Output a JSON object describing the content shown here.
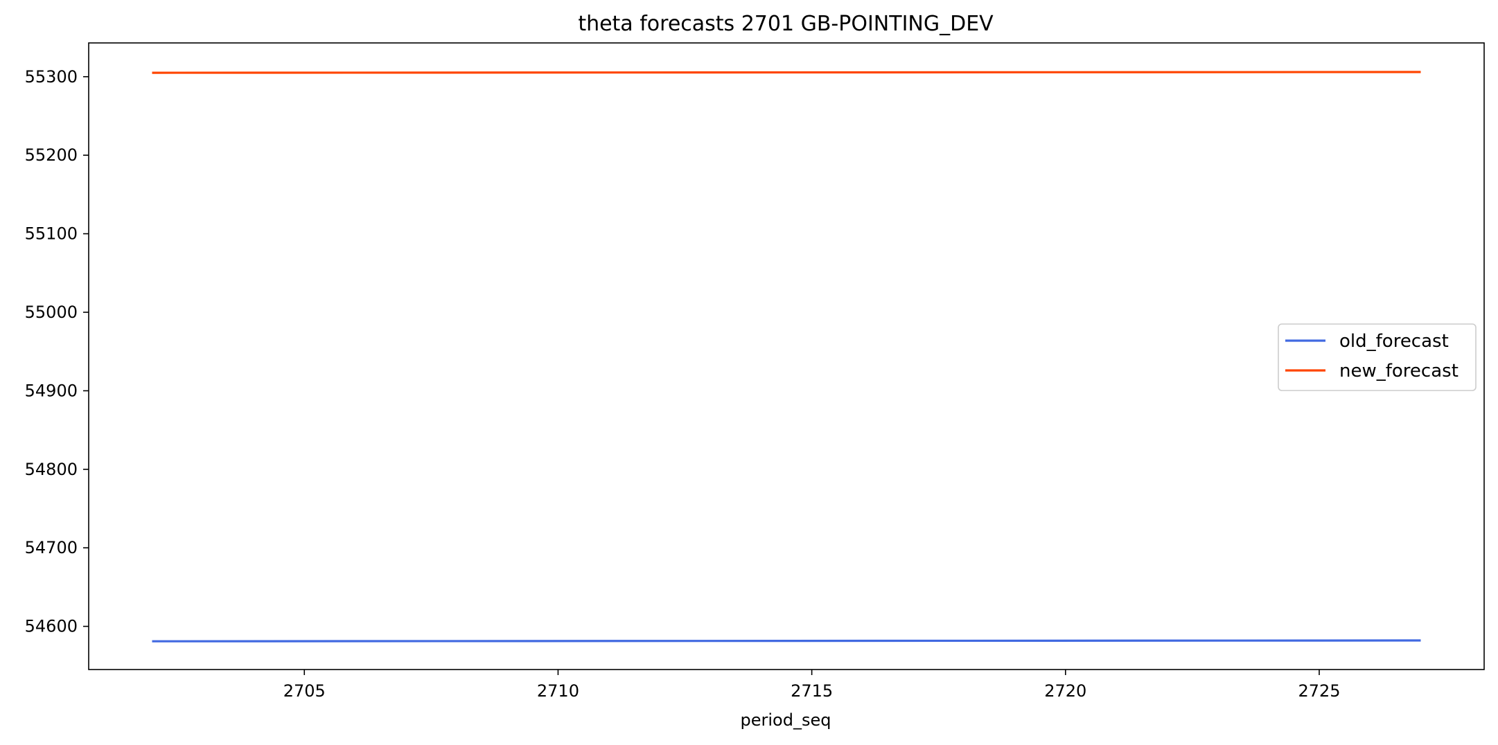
{
  "chart_data": {
    "type": "line",
    "title": "theta forecasts 2701 GB-POINTING_DEV",
    "xlabel": "period_seq",
    "ylabel": "",
    "xlim": [
      2700.75,
      2728.25
    ],
    "ylim": [
      54545,
      55343
    ],
    "xticks": [
      2705,
      2710,
      2715,
      2720,
      2725
    ],
    "yticks": [
      54600,
      54700,
      54800,
      54900,
      55000,
      55100,
      55200,
      55300
    ],
    "grid": false,
    "legend_position": "center-right",
    "series": [
      {
        "name": "old_forecast",
        "color": "#4169e1",
        "x": [
          2702,
          2727
        ],
        "y": [
          54581,
          54582
        ]
      },
      {
        "name": "new_forecast",
        "color": "#ff4500",
        "x": [
          2702,
          2727
        ],
        "y": [
          55305,
          55306
        ]
      }
    ]
  }
}
